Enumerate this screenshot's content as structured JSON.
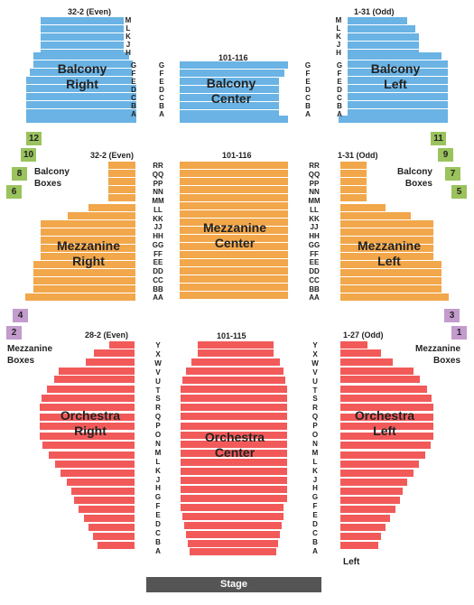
{
  "colors": {
    "balcony": "#6ab3e4",
    "mezzanine": "#f1a74a",
    "orchestra": "#f25a5a",
    "box_green": "#9ac35d",
    "box_purple": "#c39bcd",
    "stage": "#555555"
  },
  "balcony": {
    "right_label": "32-2 (Even)",
    "center_label": "101-116",
    "left_label": "1-31 (Odd)",
    "right_title": "Balcony\nRight",
    "center_title": "Balcony\nCenter",
    "left_title": "Balcony\nLeft",
    "rows_upper": [
      "M",
      "L",
      "K",
      "J",
      "H"
    ],
    "rows_lower": [
      "G",
      "F",
      "E",
      "D",
      "C",
      "B",
      "A"
    ]
  },
  "balcony_boxes": {
    "label": "Balcony\nBoxes",
    "left_numbers": [
      "12",
      "10",
      "8",
      "6"
    ],
    "right_numbers": [
      "11",
      "9",
      "7",
      "5"
    ]
  },
  "mezzanine": {
    "right_label": "32-2 (Even)",
    "center_label": "101-116",
    "left_label": "1-31 (Odd)",
    "right_title": "Mezzanine\nRight",
    "center_title": "Mezzanine\nCenter",
    "left_title": "Mezzanine\nLeft",
    "rows": [
      "RR",
      "QQ",
      "PP",
      "NN",
      "MM",
      "LL",
      "KK",
      "JJ",
      "HH",
      "GG",
      "FF",
      "EE",
      "DD",
      "CC",
      "BB",
      "AA"
    ]
  },
  "mezzanine_boxes": {
    "label": "Mezzanine\nBoxes",
    "left_numbers": [
      "4",
      "2"
    ],
    "right_numbers": [
      "3",
      "1"
    ]
  },
  "orchestra": {
    "right_label": "28-2 (Even)",
    "center_label": "101-115",
    "left_label": "1-27 (Odd)",
    "right_title": "Orchestra\nRight",
    "center_title": "Orchestra\nCenter",
    "left_title": "Orchestra\nLeft",
    "rows": [
      "Y",
      "X",
      "W",
      "V",
      "U",
      "T",
      "S",
      "R",
      "Q",
      "P",
      "O",
      "N",
      "M",
      "L",
      "K",
      "J",
      "H",
      "G",
      "F",
      "E",
      "D",
      "C",
      "B",
      "A"
    ],
    "left_text": "Left"
  },
  "stage": "Stage"
}
